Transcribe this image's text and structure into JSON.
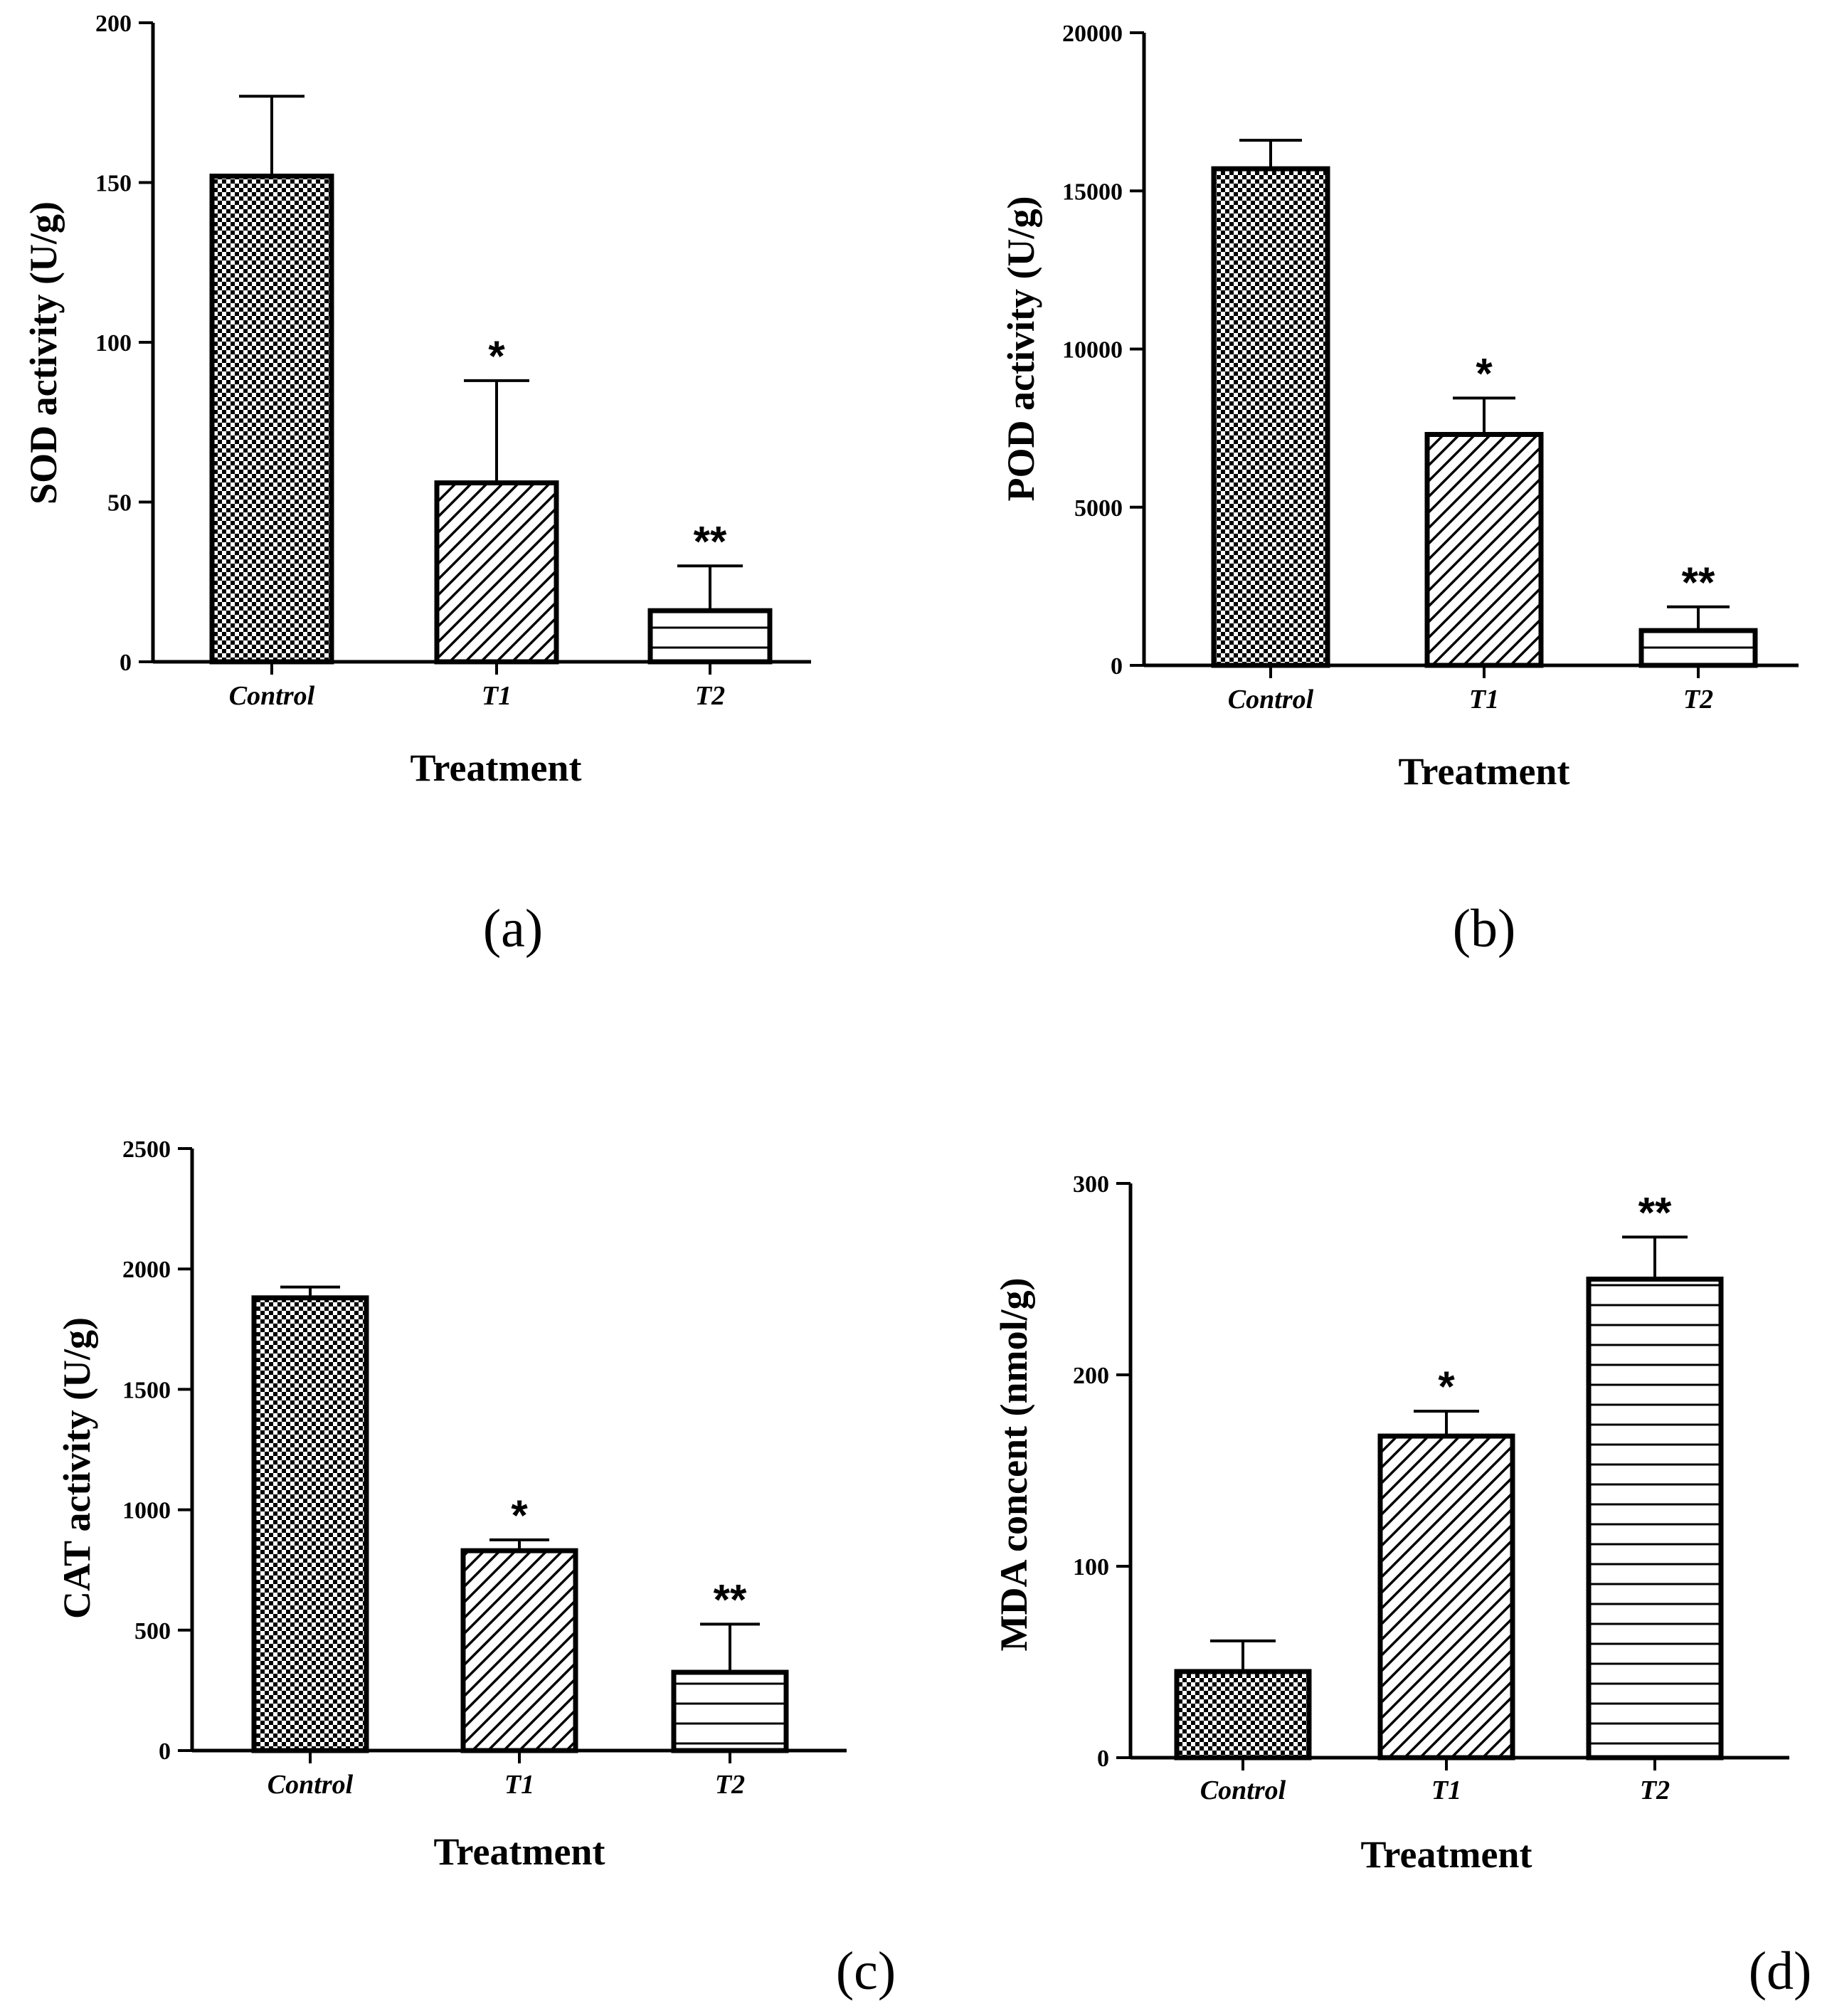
{
  "chart_data": [
    {
      "type": "bar",
      "panel_label": "(a)",
      "categories": [
        "Control",
        "T1",
        "T2"
      ],
      "values": [
        152,
        56,
        16
      ],
      "errors": [
        25,
        32,
        14
      ],
      "significance": [
        "",
        "*",
        "**"
      ],
      "xlabel": "Treatment",
      "ylabel": "SOD activity (U/g)",
      "ylim": [
        0,
        200
      ],
      "yticks": [
        0,
        50,
        100,
        150,
        200
      ],
      "ytick_labels": [
        "0",
        "50",
        "100",
        "150",
        "200"
      ],
      "patterns": [
        "checker",
        "diagonal",
        "horizontal"
      ],
      "grid": false
    },
    {
      "type": "bar",
      "panel_label": "(b)",
      "categories": [
        "Control",
        "T1",
        "T2"
      ],
      "values": [
        15700,
        7300,
        1100
      ],
      "errors": [
        900,
        1150,
        750
      ],
      "significance": [
        "",
        "*",
        "**"
      ],
      "xlabel": "Treatment",
      "ylabel": "POD activity (U/g)",
      "ylim": [
        0,
        20000
      ],
      "yticks": [
        0,
        5000,
        10000,
        15000,
        20000
      ],
      "ytick_labels": [
        "0",
        "5000",
        "10000",
        "15000",
        "20000"
      ],
      "patterns": [
        "checker",
        "diagonal",
        "horizontal"
      ],
      "grid": false
    },
    {
      "type": "bar",
      "panel_label": "(c)",
      "categories": [
        "Control",
        "T1",
        "T2"
      ],
      "values": [
        1880,
        830,
        325
      ],
      "errors": [
        45,
        45,
        200
      ],
      "significance": [
        "",
        "*",
        "**"
      ],
      "xlabel": "Treatment",
      "ylabel": "CAT activity (U/g)",
      "ylim": [
        0,
        2500
      ],
      "yticks": [
        0,
        500,
        1000,
        1500,
        2000,
        2500
      ],
      "ytick_labels": [
        "0",
        "500",
        "1000",
        "1500",
        "2000",
        "2500"
      ],
      "patterns": [
        "checker",
        "diagonal",
        "horizontal"
      ],
      "grid": false
    },
    {
      "type": "bar",
      "panel_label": "(d)",
      "categories": [
        "Control",
        "T1",
        "T2"
      ],
      "values": [
        45,
        168,
        250
      ],
      "errors": [
        16,
        13,
        22
      ],
      "significance": [
        "",
        "*",
        "**"
      ],
      "xlabel": "Treatment",
      "ylabel": "MDA concent (nmol/g)",
      "ylim": [
        0,
        300
      ],
      "yticks": [
        0,
        100,
        200,
        300
      ],
      "ytick_labels": [
        "0",
        "100",
        "200",
        "300"
      ],
      "patterns": [
        "checker",
        "diagonal",
        "horizontal"
      ],
      "grid": false
    }
  ]
}
